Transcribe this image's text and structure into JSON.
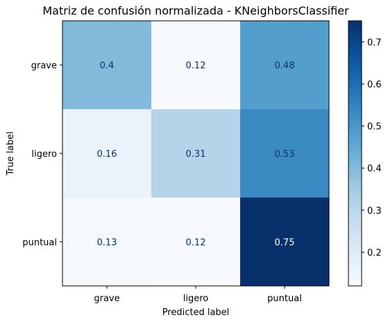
{
  "chart_data": {
    "type": "heatmap",
    "title": "Matriz de confusión normalizada - KNeighborsClassifier",
    "xlabel": "Predicted label",
    "ylabel": "True label",
    "x_categories": [
      "grave",
      "ligero",
      "puntual"
    ],
    "y_categories": [
      "grave",
      "ligero",
      "puntual"
    ],
    "values": [
      [
        0.4,
        0.12,
        0.48
      ],
      [
        0.16,
        0.31,
        0.53
      ],
      [
        0.13,
        0.12,
        0.75
      ]
    ],
    "value_labels": [
      [
        "0.4",
        "0.12",
        "0.48"
      ],
      [
        "0.16",
        "0.31",
        "0.53"
      ],
      [
        "0.13",
        "0.12",
        "0.75"
      ]
    ],
    "colormap": "Blues",
    "colorbar": {
      "range": [
        0.12,
        0.75
      ],
      "ticks": [
        0.2,
        0.3,
        0.4,
        0.5,
        0.6,
        0.7
      ],
      "tick_labels": [
        "0.2",
        "0.3",
        "0.4",
        "0.5",
        "0.6",
        "0.7"
      ]
    },
    "grid": false
  }
}
